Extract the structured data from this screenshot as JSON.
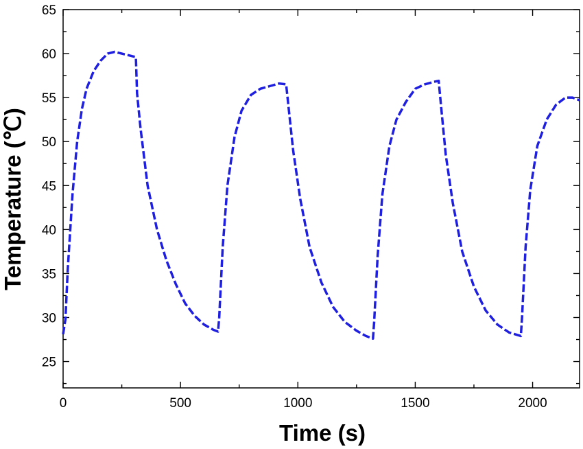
{
  "chart_data": {
    "type": "line",
    "title": "",
    "xlabel": "Time (s)",
    "ylabel": "Temperature (℃)",
    "xlim": [
      0,
      2200
    ],
    "ylim": [
      22,
      65
    ],
    "x_ticks": [
      0,
      500,
      1000,
      1500,
      2000
    ],
    "x_tick_labels": [
      "0",
      "500",
      "1000",
      "1500",
      "2000"
    ],
    "y_ticks": [
      25,
      30,
      35,
      40,
      45,
      50,
      55,
      60,
      65
    ],
    "y_tick_labels": [
      "25",
      "30",
      "35",
      "40",
      "45",
      "50",
      "55",
      "60",
      "65"
    ],
    "grid": false,
    "line_style": "dashed",
    "color": "#1f1fe0",
    "series": [
      {
        "x": [
          0,
          10,
          20,
          40,
          60,
          80,
          100,
          130,
          160,
          190,
          220,
          250,
          280,
          310,
          315,
          330,
          360,
          400,
          440,
          480,
          520,
          560,
          600,
          640,
          660,
          665,
          680,
          700,
          730,
          760,
          800,
          840,
          880,
          920,
          950,
          960,
          980,
          1010,
          1050,
          1100,
          1150,
          1200,
          1250,
          1290,
          1320,
          1325,
          1340,
          1360,
          1390,
          1420,
          1460,
          1500,
          1540,
          1580,
          1600,
          1610,
          1630,
          1660,
          1700,
          1750,
          1800,
          1850,
          1900,
          1950,
          1955,
          1970,
          1990,
          2020,
          2060,
          2100,
          2140,
          2170,
          2200
        ],
        "y": [
          28.1,
          29.8,
          35.5,
          44.0,
          50.0,
          53.7,
          56.0,
          58.0,
          59.2,
          60.0,
          60.2,
          60.0,
          59.8,
          59.6,
          55.5,
          51.5,
          45.0,
          40.0,
          36.5,
          33.8,
          31.6,
          30.2,
          29.2,
          28.6,
          28.4,
          30.0,
          38.0,
          45.0,
          50.5,
          53.5,
          55.3,
          56.0,
          56.3,
          56.6,
          56.5,
          54.0,
          49.0,
          43.5,
          38.0,
          34.0,
          31.2,
          29.5,
          28.5,
          27.9,
          27.6,
          29.5,
          37.0,
          44.0,
          49.5,
          52.5,
          54.5,
          56.0,
          56.5,
          56.8,
          56.9,
          54.0,
          48.5,
          43.0,
          37.5,
          33.5,
          30.8,
          29.2,
          28.3,
          27.9,
          30.0,
          38.0,
          44.5,
          49.5,
          52.5,
          54.2,
          55.0,
          55.0,
          54.7
        ]
      }
    ]
  }
}
